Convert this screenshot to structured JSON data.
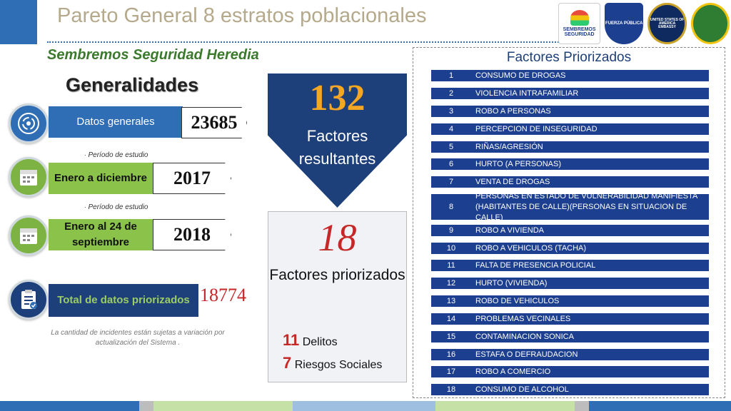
{
  "header": {
    "title": "Pareto General 8 estratos poblacionales",
    "subtitle": "Sembremos Seguridad Heredia"
  },
  "logos": [
    {
      "name": "sembremos-seguridad-logo",
      "text": "SEMBREMOS SEGURIDAD"
    },
    {
      "name": "fuerza-publica-logo",
      "text": "FUERZA PÚBLICA"
    },
    {
      "name": "us-embassy-logo",
      "text": "UNITED STATES OF AMERICA EMBASSY"
    },
    {
      "name": "policia-colombia-logo",
      "text": ""
    }
  ],
  "generalidades": {
    "title": "Generalidades",
    "datos_label": "Datos generales",
    "datos_value": "23685",
    "periodo_label": "Período de estudio",
    "periodo1_label": "Enero a diciembre",
    "periodo1_value": "2017",
    "periodo2_label": "Enero al 24 de septiembre",
    "periodo2_value": "2018",
    "total_label": "Total de datos priorizados",
    "total_value": "18774",
    "note": "La cantidad de incidentes están sujetas a variación por actualización del Sistema ."
  },
  "resultantes": {
    "number": "132",
    "label": "Factores resultantes"
  },
  "priorizados": {
    "number": "18",
    "label": "Factores priorizados",
    "delitos_num": "11",
    "delitos_label": "Delitos",
    "riesgos_num": "7",
    "riesgos_label": "Riesgos Sociales"
  },
  "factores": {
    "title": "Factores Priorizados",
    "items": [
      {
        "n": "1",
        "text": "CONSUMO DE DROGAS"
      },
      {
        "n": "2",
        "text": "VIOLENCIA INTRAFAMILIAR"
      },
      {
        "n": "3",
        "text": "ROBO A PERSONAS"
      },
      {
        "n": "4",
        "text": "PERCEPCION DE INSEGURIDAD"
      },
      {
        "n": "5",
        "text": "RIÑAS/AGRESIÓN"
      },
      {
        "n": "6",
        "text": "HURTO (A PERSONAS)"
      },
      {
        "n": "7",
        "text": "VENTA DE DROGAS"
      },
      {
        "n": "8",
        "text": "PERSONAS EN ESTADO DE VULNERABILIDAD MANIFIESTA (HABITANTES DE CALLE)(PERSONAS EN SITUACION DE CALLE)"
      },
      {
        "n": "9",
        "text": "ROBO A VIVIENDA"
      },
      {
        "n": "10",
        "text": "ROBO A VEHICULOS (TACHA)"
      },
      {
        "n": "11",
        "text": "FALTA DE PRESENCIA POLICIAL"
      },
      {
        "n": "12",
        "text": "HURTO (VIVIENDA)"
      },
      {
        "n": "13",
        "text": "ROBO DE VEHICULOS"
      },
      {
        "n": "14",
        "text": "PROBLEMAS VECINALES"
      },
      {
        "n": "15",
        "text": "CONTAMINACION SONICA"
      },
      {
        "n": "16",
        "text": "ESTAFA O DEFRAUDACION"
      },
      {
        "n": "17",
        "text": "ROBO A COMERCIO"
      },
      {
        "n": "18",
        "text": "CONSUMO DE ALCOHOL"
      }
    ]
  },
  "colors": {
    "primary_blue": "#2f6db5",
    "dark_navy": "#1d3f7a",
    "green": "#8bc34a",
    "accent_orange": "#f5a623",
    "accent_red": "#c62828",
    "title_tan": "#b5a98c"
  },
  "icons": [
    "data-circle-icon",
    "calendar-icon",
    "calendar-icon",
    "clipboard-check-icon"
  ]
}
